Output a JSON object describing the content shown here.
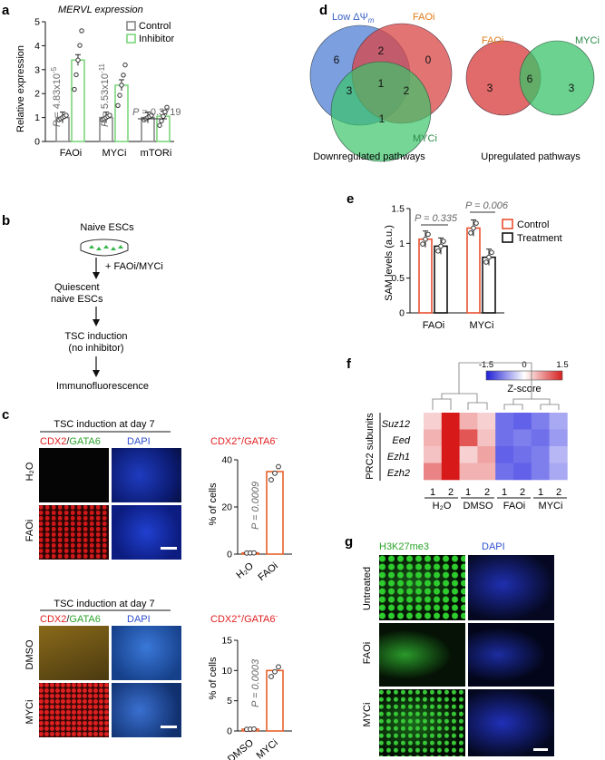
{
  "panels": {
    "a": {
      "letter": "a",
      "title": "MERVL expression",
      "ylabel": "Relative expression",
      "legend": [
        "Control",
        "Inhibitor"
      ],
      "pvalues": [
        {
          "pre": "P",
          "text": " = 4.83x10",
          "exp": "-5"
        },
        {
          "pre": "P",
          "text": " = 5.53x10",
          "exp": "-11"
        },
        {
          "pre": "P",
          "text": " = 0.3719",
          "exp": ""
        }
      ]
    },
    "b": {
      "letter": "b",
      "steps": [
        "Naive ESCs",
        "+ FAOi/MYCi",
        "Quiescent",
        "naive ESCs",
        "TSC induction",
        "(no inhibitor)",
        "Immunofluorescence"
      ]
    },
    "c": {
      "letter": "c",
      "header": "TSC induction at day 7",
      "stain_cdx2": "CDX2",
      "stain_slash": "/",
      "stain_gata6": "GATA6",
      "stain_dapi": "DAPI",
      "rows_top": [
        "H₂O",
        "FAOi"
      ],
      "rows_bottom": [
        "DMSO",
        "MYCi"
      ],
      "quant_title_a": "CDX2",
      "quant_title_sup1": "+",
      "quant_title_b": "/GATA6",
      "quant_title_sup2": "-",
      "ylabel": "% of cells",
      "p_top": "P = 0.0009",
      "p_bottom": "P = 0.0003"
    },
    "d": {
      "letter": "d",
      "low_label": "Low ΔΨ",
      "low_sub": "m",
      "faoi": "FAOi",
      "myci": "MYCi",
      "down_caption": "Downregulated pathways",
      "up_caption": "Upregulated pathways",
      "down_counts": [
        "6",
        "2",
        "0",
        "3",
        "1",
        "2",
        "1"
      ],
      "up_counts": [
        "3",
        "6",
        "3"
      ]
    },
    "e": {
      "letter": "e",
      "ylabel": "SAM levels (a.u.)",
      "legend": [
        "Control",
        "Treatment"
      ],
      "pvalues": [
        "P = 0.335",
        "P = 0.006"
      ]
    },
    "f": {
      "letter": "f",
      "genes": [
        "Suz12",
        "Eed",
        "Ezh1",
        "Ezh2"
      ],
      "group_label": "PRC2 subunits",
      "replicates": [
        "1",
        "2",
        "1",
        "2",
        "1",
        "2",
        "1",
        "2"
      ],
      "groups": [
        "H₂O",
        "DMSO",
        "FAOi",
        "MYCi"
      ],
      "scale_ticks": [
        "-1.5",
        "0",
        "1.5"
      ],
      "scale_label": "Z-score",
      "heatmap": [
        [
          0.3,
          1.5,
          0.5,
          0.3,
          -1.0,
          -1.1,
          -0.9,
          -0.6
        ],
        [
          0.5,
          1.5,
          1.1,
          0.4,
          -1.0,
          -0.9,
          -1.0,
          -0.7
        ],
        [
          0.4,
          1.5,
          0.3,
          0.6,
          -1.1,
          -1.0,
          -0.9,
          -0.5
        ],
        [
          0.8,
          1.5,
          0.5,
          0.5,
          -1.0,
          -1.1,
          -0.9,
          -0.6
        ]
      ]
    },
    "g": {
      "letter": "g",
      "stain1": "H3K27me3",
      "stain2": "DAPI",
      "rows": [
        "Untreated",
        "FAOi",
        "MYCi"
      ]
    }
  },
  "chart_data": [
    {
      "type": "bar",
      "panel": "a",
      "categories": [
        "FAOi",
        "MYCi",
        "mTORi"
      ],
      "series": [
        {
          "name": "Control",
          "values": [
            1.0,
            1.0,
            1.0
          ]
        },
        {
          "name": "Inhibitor",
          "values": [
            3.4,
            2.35,
            1.05
          ]
        }
      ],
      "ylim": [
        0,
        5
      ],
      "yticks": [
        0,
        1,
        2,
        3,
        4,
        5
      ]
    },
    {
      "type": "bar",
      "panel": "c-top",
      "categories": [
        "H₂O",
        "FAOi"
      ],
      "values": [
        0.5,
        35
      ],
      "ylim": [
        0,
        40
      ],
      "yticks": [
        0,
        20,
        40
      ]
    },
    {
      "type": "bar",
      "panel": "c-bottom",
      "categories": [
        "DMSO",
        "MYCi"
      ],
      "values": [
        0.3,
        10
      ],
      "ylim": [
        0,
        15
      ],
      "yticks": [
        0,
        5,
        10,
        15
      ]
    },
    {
      "type": "bar",
      "panel": "e",
      "categories": [
        "FAOi",
        "MYCi"
      ],
      "series": [
        {
          "name": "Control",
          "values": [
            1.06,
            1.22
          ]
        },
        {
          "name": "Treatment",
          "values": [
            0.96,
            0.8
          ]
        }
      ],
      "ylim": [
        0,
        1.5
      ],
      "yticks": [
        0,
        0.5,
        1,
        1.5
      ]
    }
  ]
}
